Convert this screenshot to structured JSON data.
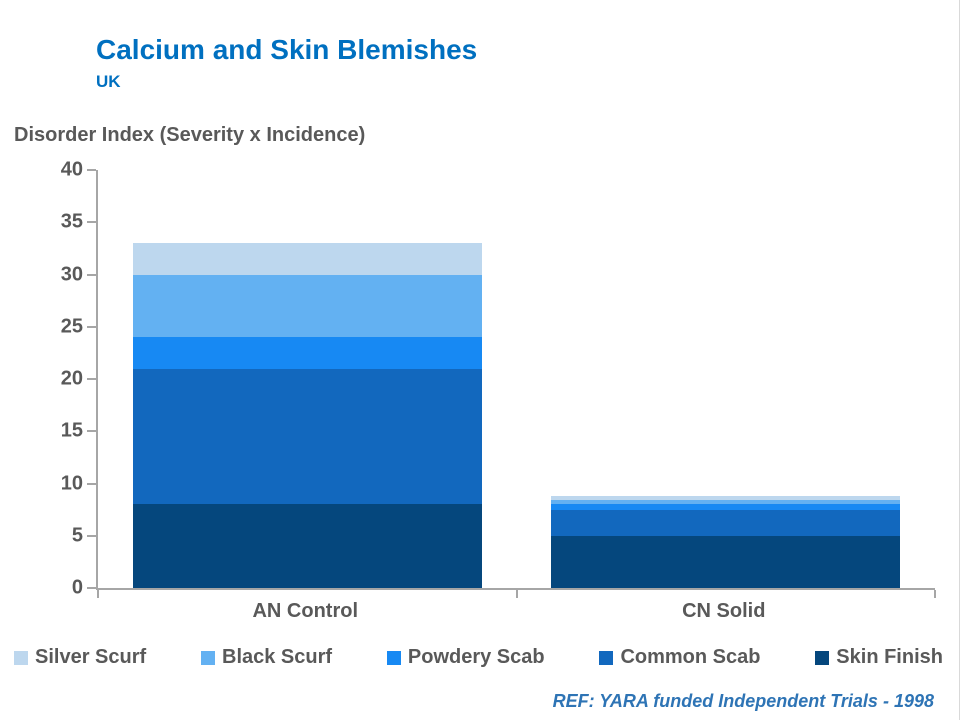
{
  "slide": {
    "title": "Calcium and Skin Blemishes",
    "subtitle": "UK",
    "footer": "REF: YARA funded Independent Trials - 1998"
  },
  "chart_data": {
    "type": "bar",
    "stacked": true,
    "title": "Calcium and Skin Blemishes",
    "axis_title": "Disorder Index (Severity x Incidence)",
    "categories": [
      "AN Control",
      "CN Solid"
    ],
    "series": [
      {
        "name": "Skin Finish",
        "color": "#05477D",
        "values": [
          8,
          5
        ]
      },
      {
        "name": "Common Scab",
        "color": "#1268BE",
        "values": [
          13,
          2.5
        ]
      },
      {
        "name": "Powdery Scab",
        "color": "#1789F3",
        "values": [
          3,
          0.5
        ]
      },
      {
        "name": "Black Scurf",
        "color": "#63B1F2",
        "values": [
          6,
          0.4
        ]
      },
      {
        "name": "Silver Scurf",
        "color": "#BDD7EE",
        "values": [
          3,
          0.4
        ]
      }
    ],
    "legend_order": [
      "Silver Scurf",
      "Black Scurf",
      "Powdery Scab",
      "Common Scab",
      "Skin Finish"
    ],
    "legend_position": "bottom",
    "grid": false,
    "ylim": [
      0,
      40
    ],
    "ytick_step": 5
  }
}
